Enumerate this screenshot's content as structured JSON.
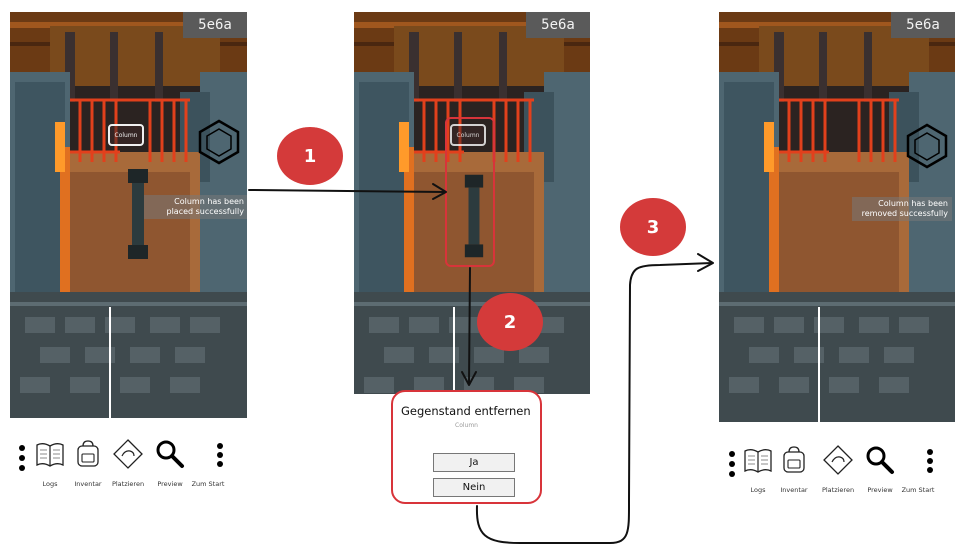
{
  "screens": {
    "level_tag": "5e6a",
    "placed_message": "Column has been placed successfully",
    "removed_message": "Column has been removed successfully",
    "object_label": "Column"
  },
  "steps": [
    "1",
    "2",
    "3"
  ],
  "dialog": {
    "title": "Gegenstand entfernen",
    "subtitle": "Column",
    "yes_label": "Ja",
    "no_label": "Nein"
  },
  "toolbar": {
    "items": [
      {
        "label": "Logs",
        "icon": "book-icon"
      },
      {
        "label": "Inventar",
        "icon": "backpack-icon"
      },
      {
        "label": "Platzieren",
        "icon": "hand-place-icon"
      },
      {
        "label": "Preview",
        "icon": "magnifier-icon"
      },
      {
        "label": "Zum Start",
        "icon": "more-vertical-icon"
      }
    ]
  },
  "colors": {
    "accent": "#d8343a",
    "badge": "#d43a3a",
    "floor": "#a86a3a",
    "wall": "#4a6470",
    "bars": "#e2401c"
  }
}
